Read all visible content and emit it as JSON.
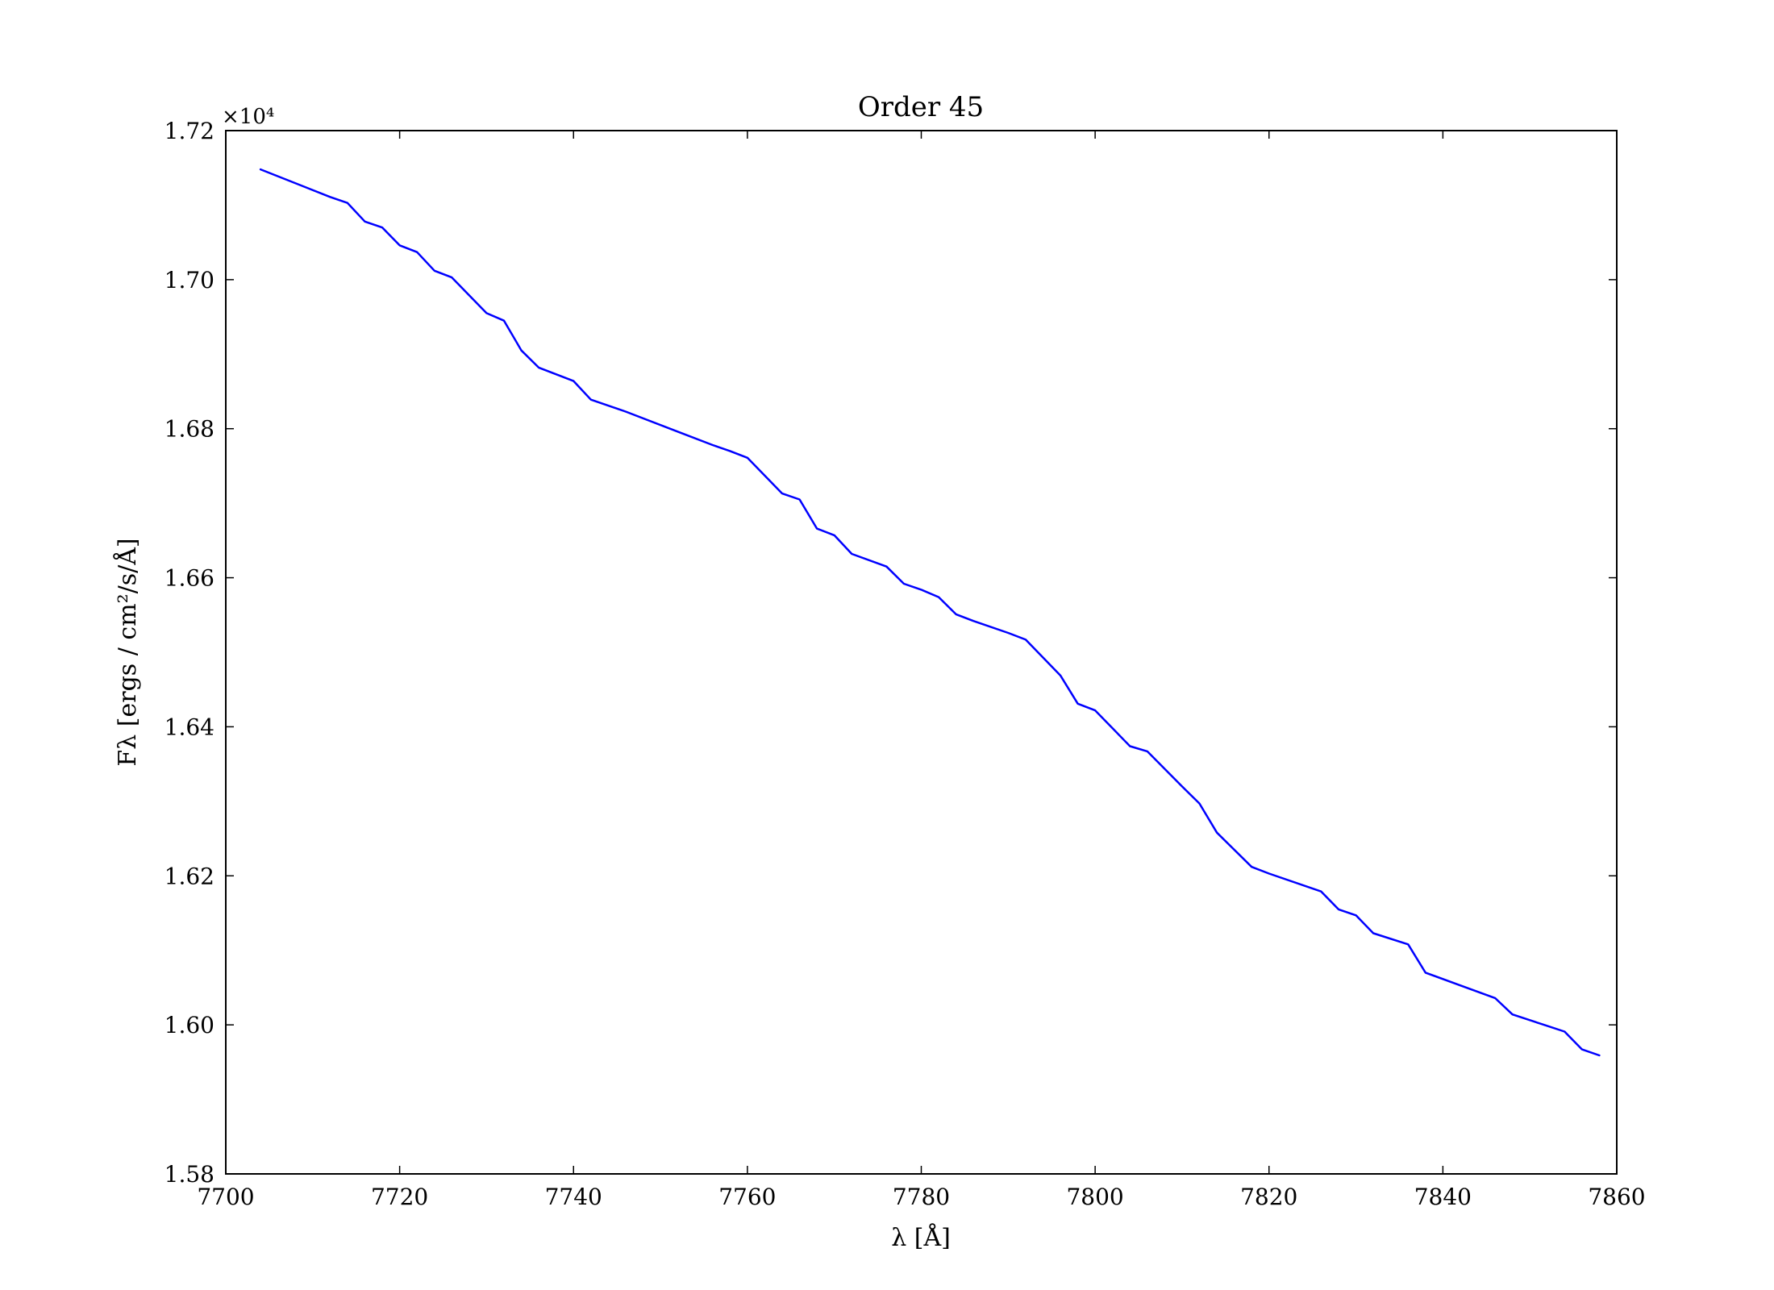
{
  "chart_data": {
    "type": "line",
    "title": "Order 45",
    "xlabel": "λ   [Å]",
    "ylabel": "Fλ   [ergs / cm²/s/Å]",
    "y_offset_label": "×10⁴",
    "xlim": [
      7700,
      7860
    ],
    "ylim": [
      1.58,
      1.72
    ],
    "x_ticks": [
      7700,
      7720,
      7740,
      7760,
      7780,
      7800,
      7820,
      7840,
      7860
    ],
    "y_ticks": [
      1.58,
      1.6,
      1.62,
      1.64,
      1.66,
      1.68,
      1.7,
      1.72
    ],
    "x_tick_labels": [
      "7700",
      "7720",
      "7740",
      "7760",
      "7780",
      "7800",
      "7820",
      "7840",
      "7860"
    ],
    "y_tick_labels": [
      "1.58",
      "1.60",
      "1.62",
      "1.64",
      "1.66",
      "1.68",
      "1.70",
      "1.72"
    ],
    "grid": false,
    "line_color": "#0000ff",
    "series": [
      {
        "x": [
          7704,
          7712,
          7714,
          7716,
          7718,
          7720,
          7722,
          7724,
          7726,
          7730,
          7732,
          7734,
          7736,
          7740,
          7742,
          7746,
          7752,
          7756,
          7758,
          7760,
          7764,
          7766,
          7768,
          7770,
          7772,
          7776,
          7778,
          7780,
          7782,
          7784,
          7786,
          7790,
          7792,
          7796,
          7798,
          7800,
          7802,
          7804,
          7806,
          7810,
          7812,
          7814,
          7818,
          7820,
          7826,
          7828,
          7830,
          7832,
          7836,
          7838,
          7842,
          7846,
          7848,
          7854,
          7856,
          7858
        ],
        "y": [
          1.7148,
          1.7111,
          1.7103,
          1.7078,
          1.707,
          1.7046,
          1.7037,
          1.7012,
          1.7003,
          1.6955,
          1.6945,
          1.6905,
          1.6882,
          1.6864,
          1.6839,
          1.6823,
          1.6796,
          1.6778,
          1.677,
          1.6761,
          1.6713,
          1.6705,
          1.6666,
          1.6657,
          1.6632,
          1.6615,
          1.6592,
          1.6584,
          1.6574,
          1.6551,
          1.6542,
          1.6526,
          1.6517,
          1.6469,
          1.6431,
          1.6422,
          1.6398,
          1.6374,
          1.6367,
          1.632,
          1.6297,
          1.6258,
          1.6212,
          1.6203,
          1.6179,
          1.6155,
          1.6147,
          1.6123,
          1.6108,
          1.607,
          1.6053,
          1.6036,
          1.6014,
          1.5991,
          1.5967,
          1.5959
        ]
      }
    ]
  }
}
